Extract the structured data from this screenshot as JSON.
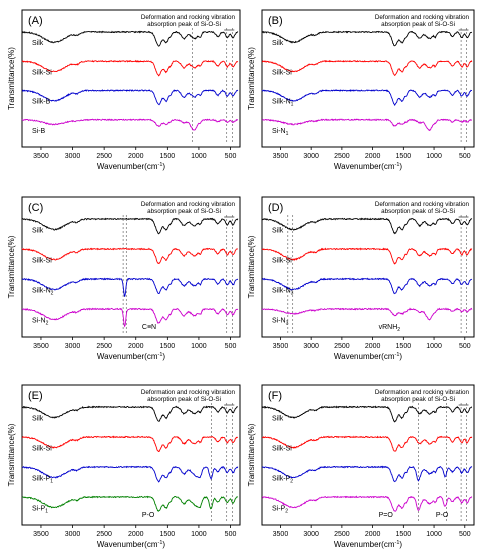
{
  "figure": {
    "title": ""
  },
  "chart_data": [
    {
      "type": "line",
      "panel_label": "(A)",
      "xlabel": "Wavenumber(cm",
      "xlabel_sup": "-1",
      "xlabel_tail": ")",
      "ylabel": "Transmittance(%)",
      "xlim": [
        3800,
        350
      ],
      "xticks": [
        3500,
        3000,
        2500,
        2000,
        1500,
        1000,
        500
      ],
      "xtick_labels": [
        "3500",
        "3000",
        "2500",
        "2000",
        "1500",
        "1000",
        "500"
      ],
      "annotation": [
        "Deformation and rocking vibration",
        "absorption peak of Si-O-Si"
      ],
      "dashed_lines": [
        1100,
        560,
        470
      ],
      "series": [
        {
          "name": "Silk",
          "color": "#000000",
          "offset": 3.0
        },
        {
          "name": "Silk-Si",
          "color": "#ff0000",
          "offset": 2.0
        },
        {
          "name": "Silk-B",
          "color": "#0000cc",
          "offset": 1.0
        },
        {
          "name": "Si-B",
          "color": "#cc00cc",
          "offset": 0.15
        }
      ]
    },
    {
      "type": "line",
      "panel_label": "(B)",
      "xlabel": "Wavenumber(cm",
      "xlabel_sup": "-1",
      "xlabel_tail": ")",
      "ylabel": "Transmittance(%)",
      "xlim": [
        3800,
        350
      ],
      "xticks": [
        3500,
        3000,
        2500,
        2000,
        1500,
        1000,
        500
      ],
      "xtick_labels": [
        "3500",
        "3000",
        "2500",
        "2000",
        "1500",
        "1000",
        "500"
      ],
      "annotation": [
        "Deformation and rocking vibration",
        "absorption peak of Si-O-Si"
      ],
      "dashed_lines": [
        560,
        470
      ],
      "series": [
        {
          "name": "Silk",
          "color": "#000000",
          "offset": 3.0
        },
        {
          "name": "Silk-Si",
          "color": "#ff0000",
          "offset": 2.0
        },
        {
          "name": "Silk-N",
          "sub": "1",
          "color": "#0000cc",
          "offset": 1.0
        },
        {
          "name": "Si-N",
          "sub": "1",
          "color": "#cc00cc",
          "offset": 0.15
        }
      ]
    },
    {
      "type": "line",
      "panel_label": "(C)",
      "xlabel": "Wavenumber(cm",
      "xlabel_sup": "-1",
      "xlabel_tail": ")",
      "ylabel": "Transmittance(%)",
      "xlim": [
        3800,
        350
      ],
      "xticks": [
        3500,
        3000,
        2500,
        2000,
        1500,
        1000,
        500
      ],
      "xtick_labels": [
        "3500",
        "3000",
        "2500",
        "2000",
        "1500",
        "1000",
        "500"
      ],
      "annotation": [
        "Deformation and rocking vibration",
        "absorption peak of Si-O-Si"
      ],
      "dashed_lines": [
        2200,
        2150,
        560,
        470
      ],
      "extra_label": "C≡N",
      "series": [
        {
          "name": "Silk",
          "color": "#000000",
          "offset": 3.0
        },
        {
          "name": "Silk-Si",
          "color": "#ff0000",
          "offset": 2.0
        },
        {
          "name": "Silk-N",
          "sub": "2",
          "color": "#0000cc",
          "offset": 1.0
        },
        {
          "name": "Si-N",
          "sub": "2",
          "color": "#cc00cc",
          "offset": 0.15
        }
      ]
    },
    {
      "type": "line",
      "panel_label": "(D)",
      "xlabel": "Wavenumber(cm",
      "xlabel_sup": "-1",
      "xlabel_tail": ")",
      "ylabel": "Transmittance(%)",
      "xlim": [
        3800,
        350
      ],
      "xticks": [
        3500,
        3000,
        2500,
        2000,
        1500,
        1000,
        500
      ],
      "xtick_labels": [
        "3500",
        "3000",
        "2500",
        "2000",
        "1500",
        "1000",
        "500"
      ],
      "annotation": [
        "Deformation and rocking vibration",
        "absorption peak of Si-O-Si"
      ],
      "dashed_lines": [
        3380,
        3300,
        560,
        470
      ],
      "extra_label": "vRNH",
      "extra_label_sub": "2",
      "series": [
        {
          "name": "Silk",
          "color": "#000000",
          "offset": 3.0
        },
        {
          "name": "Silk-Si",
          "color": "#ff0000",
          "offset": 2.0
        },
        {
          "name": "Silk-N",
          "sub": "3",
          "color": "#0000cc",
          "offset": 1.0
        },
        {
          "name": "Si-N",
          "sub": "3",
          "color": "#cc00cc",
          "offset": 0.15
        }
      ]
    },
    {
      "type": "line",
      "panel_label": "(E)",
      "xlabel": "Wavenumber(cm",
      "xlabel_sup": "-1",
      "xlabel_tail": ")",
      "ylabel": "Transmittance(%)",
      "xlim": [
        3800,
        350
      ],
      "xticks": [
        3500,
        3000,
        2500,
        2000,
        1500,
        1000,
        500
      ],
      "xtick_labels": [
        "3500",
        "3000",
        "2500",
        "2000",
        "1500",
        "1000",
        "500"
      ],
      "annotation": [
        "Deformation and rocking vibration",
        "absorption peak of Si-O-Si"
      ],
      "dashed_lines": [
        800,
        560,
        470
      ],
      "extra_label": "P-O",
      "series": [
        {
          "name": "Silk",
          "color": "#000000",
          "offset": 3.0
        },
        {
          "name": "Silk-Si",
          "color": "#ff0000",
          "offset": 2.1
        },
        {
          "name": "Silk-P",
          "sub": "1",
          "color": "#0000cc",
          "offset": 1.2
        },
        {
          "name": "Si-P",
          "sub": "1",
          "color": "#008000",
          "offset": 0.0
        }
      ]
    },
    {
      "type": "line",
      "panel_label": "(F)",
      "xlabel": "Wavenumber(cm",
      "xlabel_sup": "-1",
      "xlabel_tail": ")",
      "ylabel": "Transmittance(%)",
      "xlim": [
        3800,
        350
      ],
      "xticks": [
        3500,
        3000,
        2500,
        2000,
        1500,
        1000,
        500
      ],
      "xtick_labels": [
        "3500",
        "3000",
        "2500",
        "2000",
        "1500",
        "1000",
        "500"
      ],
      "annotation": [
        "Deformation and rocking vibration",
        "absorption peak of Si-O-Si"
      ],
      "dashed_lines": [
        1250,
        800,
        560,
        470
      ],
      "extra_label": "P=O",
      "extra_label_2": "P-O",
      "series": [
        {
          "name": "Silk",
          "color": "#000000",
          "offset": 3.0
        },
        {
          "name": "Silk-Si",
          "color": "#ff0000",
          "offset": 2.0
        },
        {
          "name": "Silk-P",
          "sub": "2",
          "color": "#0000cc",
          "offset": 1.0
        },
        {
          "name": "Si-P",
          "sub": "2",
          "color": "#cc00cc",
          "offset": 0.15
        }
      ]
    }
  ]
}
